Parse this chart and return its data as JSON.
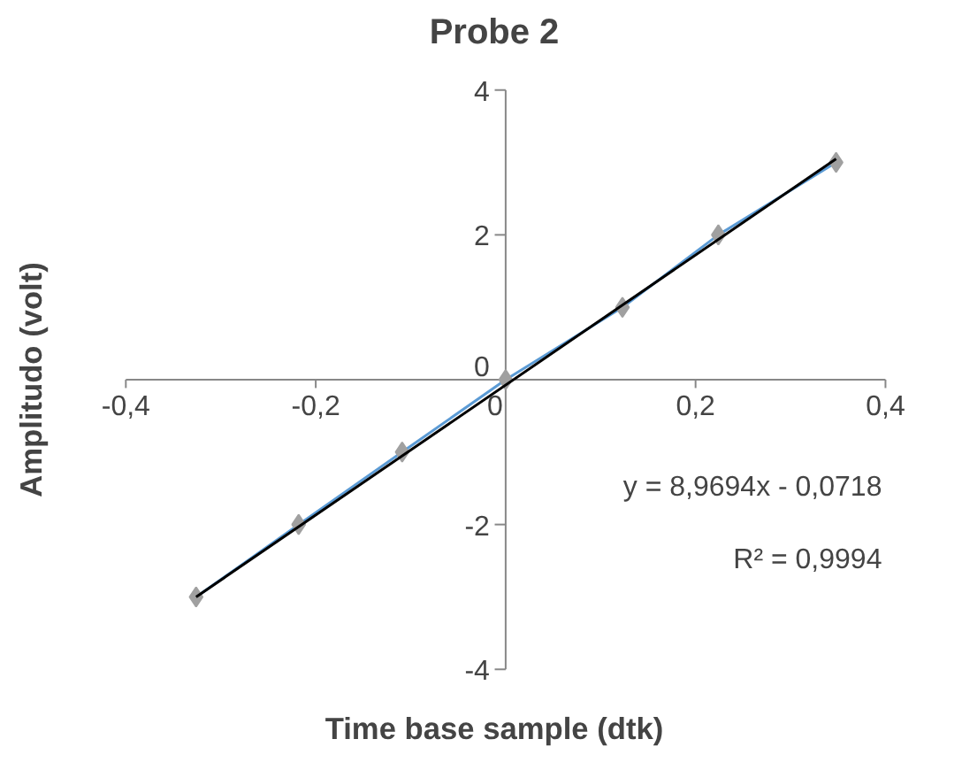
{
  "chart_data": {
    "type": "scatter",
    "title": "Probe 2",
    "xlabel": "Time base sample (dtk)",
    "ylabel": "Amplitudo (volt)",
    "x": [
      -0.326,
      -0.218,
      -0.109,
      0,
      0.123,
      0.224,
      0.348
    ],
    "series": [
      {
        "type": "line",
        "color": "#5b9bd5",
        "values": [
          -3,
          -2,
          -1,
          0,
          1,
          2,
          3
        ],
        "marker": "none"
      },
      {
        "color": "#a0a0a0",
        "values": [
          -3,
          -2,
          -1,
          0,
          1,
          2,
          3
        ],
        "marker": "diamond"
      },
      {
        "type": "line",
        "color": "#000000",
        "x": [
          -0.326,
          0.348
        ],
        "values": [
          -3.0,
          3.05
        ],
        "marker": "none"
      }
    ],
    "xlim": [
      -0.4,
      0.4
    ],
    "ylim": [
      -4,
      4
    ],
    "xticks": [
      {
        "value": -0.4,
        "label": "-0,4"
      },
      {
        "value": -0.2,
        "label": "-0,2"
      },
      0,
      {
        "value": 0.2,
        "label": "0,2"
      },
      {
        "value": 0.4,
        "label": "0,4"
      }
    ],
    "yticks": [
      -4,
      -2,
      0,
      2,
      4
    ],
    "annotations": [
      "y = 8,9694x - 0,0718",
      "R² = 0,9994"
    ]
  }
}
